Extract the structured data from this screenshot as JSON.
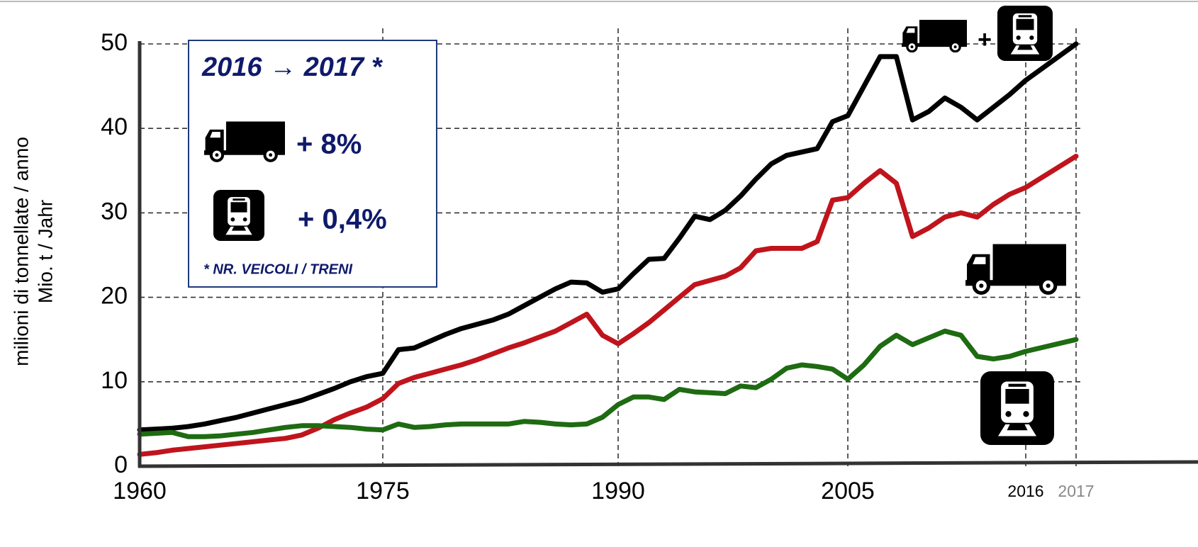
{
  "chart_data": {
    "type": "line",
    "y_label_lines": [
      "milioni di tonnellate / anno",
      "Mio. t / Jahr"
    ],
    "x": [
      1960,
      1961,
      1962,
      1963,
      1964,
      1965,
      1966,
      1967,
      1968,
      1969,
      1970,
      1971,
      1972,
      1973,
      1974,
      1975,
      1976,
      1977,
      1978,
      1979,
      1980,
      1981,
      1982,
      1983,
      1984,
      1985,
      1986,
      1987,
      1988,
      1989,
      1990,
      1991,
      1992,
      1993,
      1994,
      1995,
      1996,
      1997,
      1998,
      1999,
      2000,
      2001,
      2002,
      2003,
      2004,
      2005,
      2006,
      2007,
      2008,
      2009,
      2010,
      2011,
      2012,
      2013,
      2014,
      2015,
      2016,
      2017
    ],
    "series": [
      {
        "color": "#000000",
        "values": [
          4.3,
          4.4,
          4.5,
          4.7,
          5.0,
          5.4,
          5.8,
          6.3,
          6.8,
          7.3,
          7.8,
          8.5,
          9.2,
          10.0,
          10.6,
          11.0,
          13.8,
          14.0,
          14.8,
          15.6,
          16.3,
          16.8,
          17.3,
          18.0,
          19.0,
          20.0,
          21.0,
          21.8,
          21.7,
          20.6,
          21.0,
          22.8,
          24.5,
          24.6,
          27.0,
          29.6,
          29.2,
          30.3,
          32.0,
          34.0,
          35.8,
          36.8,
          37.2,
          37.6,
          40.8,
          41.5,
          45.0,
          48.5,
          48.5,
          41.0,
          42.0,
          43.6,
          42.5,
          41.0,
          42.5,
          44.0,
          45.7,
          50.0
        ]
      },
      {
        "color": "#c0141c",
        "values": [
          1.4,
          1.6,
          1.9,
          2.1,
          2.3,
          2.5,
          2.7,
          2.9,
          3.1,
          3.3,
          3.7,
          4.5,
          5.5,
          6.3,
          7.0,
          8.0,
          9.8,
          10.5,
          11.0,
          11.5,
          12.0,
          12.6,
          13.3,
          14.0,
          14.6,
          15.3,
          16.0,
          17.0,
          18.0,
          15.5,
          14.5,
          15.7,
          17.0,
          18.5,
          20.0,
          21.5,
          22.0,
          22.5,
          23.5,
          25.5,
          25.8,
          25.8,
          25.8,
          26.6,
          31.5,
          31.8,
          33.5,
          35.0,
          33.5,
          27.2,
          28.2,
          29.5,
          30.0,
          29.5,
          31.0,
          32.2,
          33.0,
          36.7
        ]
      },
      {
        "color": "#1e6b12",
        "values": [
          3.8,
          3.9,
          4.0,
          3.5,
          3.5,
          3.6,
          3.8,
          4.0,
          4.3,
          4.6,
          4.8,
          4.8,
          4.7,
          4.6,
          4.4,
          4.3,
          5.0,
          4.6,
          4.7,
          4.9,
          5.0,
          5.0,
          5.0,
          5.0,
          5.3,
          5.2,
          5.0,
          4.9,
          5.0,
          5.8,
          7.3,
          8.2,
          8.2,
          7.9,
          9.1,
          8.8,
          8.7,
          8.6,
          9.5,
          9.3,
          10.3,
          11.6,
          12.0,
          11.8,
          11.5,
          10.3,
          12.0,
          14.2,
          15.5,
          14.4,
          15.2,
          16.0,
          15.5,
          13.0,
          12.7,
          13.0,
          13.6,
          15.0
        ]
      }
    ],
    "xlim": [
      1960,
      2017
    ],
    "xticks": [
      1960,
      1975,
      1990,
      2005,
      2016,
      2017
    ],
    "ylim": [
      0,
      50
    ],
    "yticks": [
      0,
      10,
      20,
      30,
      40,
      50
    ],
    "grid": true,
    "inset": {
      "title": "2016 → 2017 *",
      "road": "+ 8%",
      "rail": "+ 0,4%",
      "note": "* NR. VEICOLI / TRENI"
    },
    "icon_plus": "+"
  }
}
